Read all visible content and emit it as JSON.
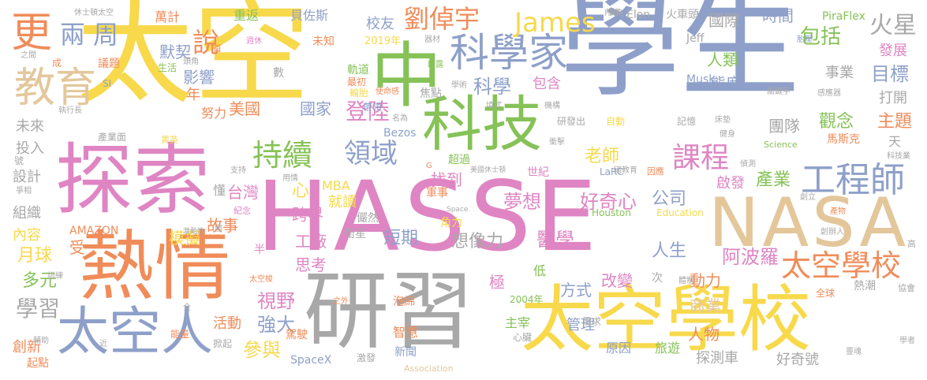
{
  "words": [
    {
      "text": "學生",
      "color": "#8ea0c9"
    },
    {
      "text": "太空",
      "color": "#f7d94b"
    },
    {
      "text": "HASSE",
      "color": "#df85c3"
    },
    {
      "text": "探索",
      "color": "#df85c3"
    },
    {
      "text": "熱情",
      "color": "#f08c5a"
    },
    {
      "text": "研習",
      "color": "#a8a8a8"
    },
    {
      "text": "太空學校",
      "color": "#f7d94b"
    },
    {
      "text": "NASA",
      "color": "#e3c79b"
    },
    {
      "text": "中",
      "color": "#86c257"
    },
    {
      "text": "科技",
      "color": "#86c257"
    },
    {
      "text": "科學家",
      "color": "#8ea0c9"
    },
    {
      "text": "太空人",
      "color": "#8ea0c9"
    },
    {
      "text": "教育",
      "color": "#e3c79b"
    },
    {
      "text": "更",
      "color": "#f08c5a"
    },
    {
      "text": "持續",
      "color": "#86c257"
    },
    {
      "text": "工程師",
      "color": "#8ea0c9"
    },
    {
      "text": "太空學校",
      "color": "#f08c5a"
    },
    {
      "text": "課程",
      "color": "#df85c3"
    },
    {
      "text": "劉倬宇",
      "color": "#f08c5a"
    },
    {
      "text": "James",
      "color": "#f7d94b"
    },
    {
      "text": "領域",
      "color": "#8ea0c9"
    },
    {
      "text": "兩周",
      "color": "#8ea0c9"
    },
    {
      "text": "說",
      "color": "#f08c5a"
    },
    {
      "text": "火星",
      "color": "#a8a8a8"
    },
    {
      "text": "包括",
      "color": "#86c257"
    },
    {
      "text": "夢想",
      "color": "#df85c3"
    },
    {
      "text": "好奇心",
      "color": "#df85c3"
    },
    {
      "text": "醫學",
      "color": "#df85c3"
    },
    {
      "text": "想像力",
      "color": "#a8a8a8"
    },
    {
      "text": "阿波羅",
      "color": "#df85c3"
    },
    {
      "text": "產業",
      "color": "#86c257"
    },
    {
      "text": "公司",
      "color": "#8ea0c9"
    },
    {
      "text": "人生",
      "color": "#8ea0c9"
    },
    {
      "text": "登陸",
      "color": "#df85c3"
    },
    {
      "text": "科學",
      "color": "#8ea0c9"
    },
    {
      "text": "老師",
      "color": "#f7d94b"
    },
    {
      "text": "視野",
      "color": "#df85c3"
    },
    {
      "text": "強大",
      "color": "#8ea0c9"
    },
    {
      "text": "參與",
      "color": "#f7d94b"
    },
    {
      "text": "學習",
      "color": "#a8a8a8"
    },
    {
      "text": "活動",
      "color": "#f08c5a"
    },
    {
      "text": "月球",
      "color": "#f7d94b"
    },
    {
      "text": "多元",
      "color": "#86c257"
    },
    {
      "text": "故事",
      "color": "#f08c5a"
    },
    {
      "text": "模擬",
      "color": "#f7d94b"
    },
    {
      "text": "短期",
      "color": "#8ea0c9"
    },
    {
      "text": "台灣",
      "color": "#df85c3"
    },
    {
      "text": "跨界",
      "color": "#df85c3"
    },
    {
      "text": "工廠",
      "color": "#df85c3"
    },
    {
      "text": "思考",
      "color": "#df85c3"
    },
    {
      "text": "美國",
      "color": "#f08c5a"
    },
    {
      "text": "國家",
      "color": "#8ea0c9"
    },
    {
      "text": "改變",
      "color": "#df85c3"
    },
    {
      "text": "方式",
      "color": "#8ea0c9"
    },
    {
      "text": "動力",
      "color": "#f08c5a"
    },
    {
      "text": "商業",
      "color": "#e3c79b"
    },
    {
      "text": "人物",
      "color": "#f08c5a"
    },
    {
      "text": "管理",
      "color": "#8ea0c9"
    },
    {
      "text": "原因",
      "color": "#8ea0c9"
    },
    {
      "text": "旅遊",
      "color": "#86c257"
    },
    {
      "text": "探測車",
      "color": "#a8a8a8"
    },
    {
      "text": "好奇號",
      "color": "#a8a8a8"
    },
    {
      "text": "目標",
      "color": "#8ea0c9"
    },
    {
      "text": "事業",
      "color": "#a8a8a8"
    },
    {
      "text": "觀念",
      "color": "#86c257"
    },
    {
      "text": "主題",
      "color": "#f08c5a"
    },
    {
      "text": "團隊",
      "color": "#a8a8a8"
    },
    {
      "text": "發展",
      "color": "#df85c3"
    },
    {
      "text": "打開",
      "color": "#a8a8a8"
    },
    {
      "text": "人類",
      "color": "#86c257"
    },
    {
      "text": "態度",
      "color": "#8ea0c9"
    },
    {
      "text": "時間",
      "color": "#8ea0c9"
    },
    {
      "text": "國際",
      "color": "#a8a8a8"
    },
    {
      "text": "啟發",
      "color": "#df85c3"
    },
    {
      "text": "默契",
      "color": "#8ea0c9"
    },
    {
      "text": "影響",
      "color": "#8ea0c9"
    },
    {
      "text": "未來",
      "color": "#a8a8a8"
    },
    {
      "text": "投入",
      "color": "#a8a8a8"
    },
    {
      "text": "設計",
      "color": "#a8a8a8"
    },
    {
      "text": "組織",
      "color": "#a8a8a8"
    },
    {
      "text": "內容",
      "color": "#f7d94b"
    },
    {
      "text": "創新",
      "color": "#f08c5a"
    },
    {
      "text": "起點",
      "color": "#f08c5a"
    },
    {
      "text": "年",
      "color": "#f08c5a"
    },
    {
      "text": "努力",
      "color": "#f08c5a"
    },
    {
      "text": "議題",
      "color": "#f08c5a"
    },
    {
      "text": "校友",
      "color": "#8ea0c9"
    },
    {
      "text": "包含",
      "color": "#df85c3"
    },
    {
      "text": "找到",
      "color": "#df85c3"
    },
    {
      "text": "就讀",
      "color": "#f7d94b"
    },
    {
      "text": "MBA",
      "color": "#f7d94b"
    },
    {
      "text": "SpaceX",
      "color": "#8ea0c9"
    },
    {
      "text": "AMAZON",
      "color": "#f08c5a"
    },
    {
      "text": "Elon",
      "color": "#a8a8a8"
    },
    {
      "text": "Musk",
      "color": "#8ea0c9"
    },
    {
      "text": "Jeff",
      "color": "#a8a8a8"
    },
    {
      "text": "Bezos",
      "color": "#8ea0c9"
    },
    {
      "text": "PiraFlex",
      "color": "#86c257"
    },
    {
      "text": "LaRC",
      "color": "#8ea0c9"
    },
    {
      "text": "Houston",
      "color": "#86c257"
    },
    {
      "text": "Education",
      "color": "#f7d94b"
    },
    {
      "text": "Association",
      "color": "#e3c79b"
    },
    {
      "text": "Science",
      "color": "#86c257"
    },
    {
      "text": "2019年",
      "color": "#f7d94b"
    },
    {
      "text": "2004年",
      "color": "#86c257"
    },
    {
      "text": "萬計",
      "color": "#f08c5a"
    },
    {
      "text": "重返",
      "color": "#86c257"
    },
    {
      "text": "貝佐斯",
      "color": "#8ea0c9"
    },
    {
      "text": "火車頭",
      "color": "#a8a8a8"
    },
    {
      "text": "世紀",
      "color": "#df85c3"
    },
    {
      "text": "超過",
      "color": "#86c257"
    },
    {
      "text": "心",
      "color": "#f7d94b"
    },
    {
      "text": "懂",
      "color": "#a8a8a8"
    },
    {
      "text": "受",
      "color": "#f08c5a"
    },
    {
      "text": "半",
      "color": "#df85c3"
    },
    {
      "text": "極",
      "color": "#df85c3"
    },
    {
      "text": "低",
      "color": "#86c257"
    },
    {
      "text": "次",
      "color": "#a8a8a8"
    },
    {
      "text": "天",
      "color": "#a8a8a8"
    },
    {
      "text": "高",
      "color": "#a8a8a8"
    },
    {
      "text": "主宰",
      "color": "#86c257"
    },
    {
      "text": "智慧",
      "color": "#f08c5a"
    },
    {
      "text": "新聞",
      "color": "#8ea0c9"
    },
    {
      "text": "激發",
      "color": "#a8a8a8"
    },
    {
      "text": "需求",
      "color": "#a8a8a8"
    },
    {
      "text": "心臟",
      "color": "#a8a8a8"
    },
    {
      "text": "泡綿",
      "color": "#f08c5a"
    },
    {
      "text": "駕駛",
      "color": "#f08c5a"
    },
    {
      "text": "角力",
      "color": "#f7d94b"
    },
    {
      "text": "衛星",
      "color": "#a8a8a8"
    },
    {
      "text": "儼然",
      "color": "#a8a8a8"
    },
    {
      "text": "軍事",
      "color": "#f08c5a"
    },
    {
      "text": "焦點",
      "color": "#a8a8a8"
    },
    {
      "text": "軌道",
      "color": "#86c257"
    },
    {
      "text": "輪胎",
      "color": "#f7d94b"
    },
    {
      "text": "最初",
      "color": "#f08c5a"
    },
    {
      "text": "使命感",
      "color": "#f08c5a"
    },
    {
      "text": "帶領",
      "color": "#8ea0c9"
    },
    {
      "text": "名為",
      "color": "#a8a8a8"
    },
    {
      "text": "研發出",
      "color": "#a8a8a8"
    },
    {
      "text": "自動",
      "color": "#f7d94b"
    },
    {
      "text": "記憶",
      "color": "#a8a8a8"
    },
    {
      "text": "床墊",
      "color": "#a8a8a8"
    },
    {
      "text": "健身",
      "color": "#a8a8a8"
    },
    {
      "text": "偵測",
      "color": "#a8a8a8"
    },
    {
      "text": "國教育",
      "color": "#a8a8a8"
    },
    {
      "text": "因應",
      "color": "#f08c5a"
    },
    {
      "text": "美國休士頓",
      "color": "#a8a8a8"
    },
    {
      "text": "休士頓太空",
      "color": "#a8a8a8"
    },
    {
      "text": "內衣",
      "color": "#a8a8a8"
    },
    {
      "text": "做為",
      "color": "#a8a8a8"
    },
    {
      "text": "胎壓",
      "color": "#8ea0c9"
    },
    {
      "text": "關鍵字",
      "color": "#a8a8a8"
    },
    {
      "text": "感應器",
      "color": "#a8a8a8"
    },
    {
      "text": "馬斯克",
      "color": "#f08c5a"
    },
    {
      "text": "科技業",
      "color": "#a8a8a8"
    },
    {
      "text": "創立",
      "color": "#a8a8a8"
    },
    {
      "text": "產物",
      "color": "#f08c5a"
    },
    {
      "text": "創辦人",
      "color": "#a8a8a8"
    },
    {
      "text": "熱潮",
      "color": "#a8a8a8"
    },
    {
      "text": "全球",
      "color": "#f08c5a"
    },
    {
      "text": "協會",
      "color": "#a8a8a8"
    },
    {
      "text": "學者",
      "color": "#a8a8a8"
    },
    {
      "text": "靈魂",
      "color": "#a8a8a8"
    },
    {
      "text": "體制",
      "color": "#a8a8a8"
    },
    {
      "text": "未知",
      "color": "#f08c5a"
    },
    {
      "text": "週休",
      "color": "#df85c3"
    },
    {
      "text": "器材",
      "color": "#a8a8a8"
    },
    {
      "text": "斷露",
      "color": "#86c257"
    },
    {
      "text": "學術",
      "color": "#a8a8a8"
    },
    {
      "text": "填式",
      "color": "#a8a8a8"
    },
    {
      "text": "機構",
      "color": "#a8a8a8"
    },
    {
      "text": "衝擊",
      "color": "#a8a8a8"
    },
    {
      "text": "數",
      "color": "#a8a8a8"
    },
    {
      "text": "生活",
      "color": "#86c257"
    },
    {
      "text": "頭角",
      "color": "#a8a8a8"
    },
    {
      "text": "首",
      "color": "#f08c5a"
    },
    {
      "text": "成",
      "color": "#f08c5a"
    },
    {
      "text": "之間",
      "color": "#a8a8a8"
    },
    {
      "text": "SI",
      "color": "#8ea0c9"
    },
    {
      "text": "執行長",
      "color": "#a8a8a8"
    },
    {
      "text": "產業面",
      "color": "#a8a8a8"
    },
    {
      "text": "菁英",
      "color": "#f7d94b"
    },
    {
      "text": "號",
      "color": "#a8a8a8"
    },
    {
      "text": "爭相",
      "color": "#a8a8a8"
    },
    {
      "text": "支持",
      "color": "#a8a8a8"
    },
    {
      "text": "用情",
      "color": "#a8a8a8"
    },
    {
      "text": "紀念",
      "color": "#df85c3"
    },
    {
      "text": "激動性",
      "color": "#a8a8a8"
    },
    {
      "text": "國",
      "color": "#a8a8a8"
    },
    {
      "text": "訓練",
      "color": "#a8a8a8"
    },
    {
      "text": "太空梭",
      "color": "#f08c5a"
    },
    {
      "text": "全",
      "color": "#a8a8a8"
    },
    {
      "text": "之外",
      "color": "#f08c5a"
    },
    {
      "text": "能量",
      "color": "#f08c5a"
    },
    {
      "text": "輔助",
      "color": "#a8a8a8"
    },
    {
      "text": "近",
      "color": "#a8a8a8"
    },
    {
      "text": "掀起",
      "color": "#a8a8a8"
    },
    {
      "text": "G",
      "color": "#f08c5a"
    },
    {
      "text": "Space",
      "color": "#a8a8a8"
    }
  ]
}
